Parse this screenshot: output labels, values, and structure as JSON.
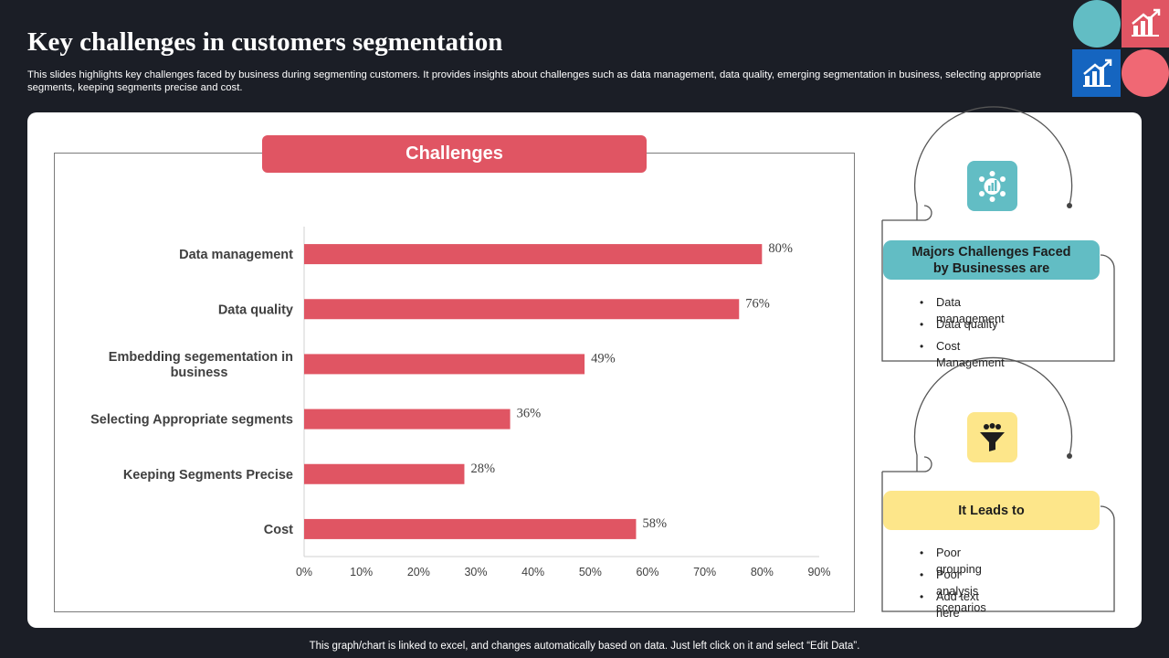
{
  "header": {
    "title": "Key challenges in customers segmentation",
    "subtitle": "This slides highlights key challenges faced by business during segmenting customers. It provides insights about challenges such as data management, data quality, emerging segmentation in business, selecting appropriate segments, keeping segments precise and cost."
  },
  "chart_banner": "Challenges",
  "chart_data": {
    "type": "bar",
    "orientation": "horizontal",
    "title": "Challenges",
    "categories": [
      "Data management",
      "Data quality",
      "Embedding segementation in business",
      "Selecting Appropriate segments",
      "Keeping Segments Precise",
      "Cost"
    ],
    "category_lines": [
      [
        "Data management"
      ],
      [
        "Data quality"
      ],
      [
        "Embedding segementation in",
        "business"
      ],
      [
        "Selecting Appropriate segments"
      ],
      [
        "Keeping Segments Precise"
      ],
      [
        "Cost"
      ]
    ],
    "values": [
      80,
      76,
      49,
      36,
      28,
      58
    ],
    "data_labels": [
      "80%",
      "76%",
      "49%",
      "36%",
      "28%",
      "58%"
    ],
    "xlim": [
      0,
      90
    ],
    "xticks": [
      "0%",
      "10%",
      "20%",
      "30%",
      "40%",
      "50%",
      "60%",
      "70%",
      "80%",
      "90%"
    ],
    "bar_color": "#e05563",
    "grid": false
  },
  "panels": {
    "challenges": {
      "heading": "Majors Challenges Faced by Businesses are",
      "items": [
        "Data management",
        "Data quality",
        "Cost Management"
      ],
      "icon": "people-chart-icon",
      "color": "#62bdc4"
    },
    "leads": {
      "heading": "It Leads to",
      "items": [
        "Poor grouping",
        "Poor analysis scenarios",
        "Add text here"
      ],
      "icon": "funnel-icon",
      "color": "#fde68a"
    }
  },
  "footer": "This graph/chart is linked to excel,  and changes automatically based on data. Just left click on it and select “Edit Data”.",
  "colors": {
    "background": "#1b1e26",
    "accent_red": "#e05563",
    "teal": "#62bdc4",
    "blue": "#1565c0",
    "pink": "#f06874"
  }
}
